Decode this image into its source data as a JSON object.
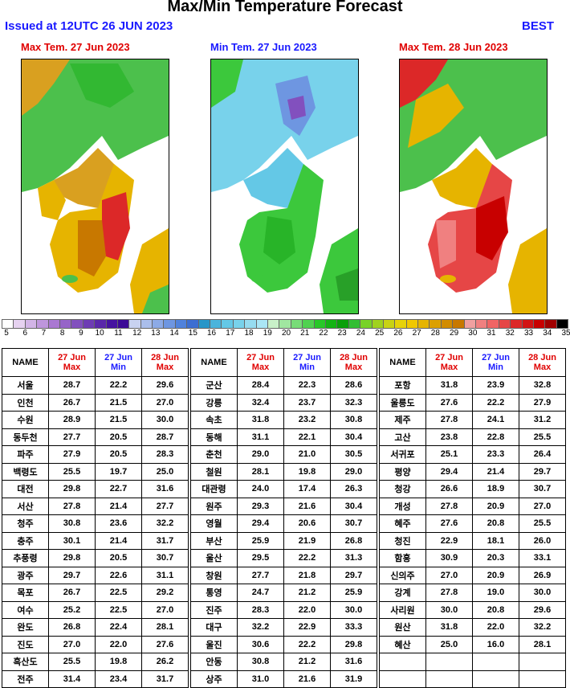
{
  "header": {
    "title": "Max/Min Temperature Forecast",
    "issued": "Issued at 12UTC 26 JUN 2023",
    "model": "BEST"
  },
  "maps": [
    {
      "title": "Max Tem. 27 Jun 2023",
      "title_color": "#e00000",
      "palette": "max1"
    },
    {
      "title": "Min Tem. 27 Jun 2023",
      "title_color": "#1a1aff",
      "palette": "min"
    },
    {
      "title": "Max Tem. 28 Jun 2023",
      "title_color": "#e00000",
      "palette": "max2"
    }
  ],
  "colorbar": {
    "labels": [
      "5",
      "6",
      "7",
      "8",
      "9",
      "10",
      "11",
      "12",
      "13",
      "14",
      "15",
      "16",
      "17",
      "18",
      "19",
      "20",
      "21",
      "22",
      "23",
      "24",
      "25",
      "26",
      "27",
      "28",
      "29",
      "30",
      "31",
      "32",
      "33",
      "34",
      "35"
    ],
    "colors": [
      "#ffffff",
      "#e6d2f0",
      "#d2b4e6",
      "#be96dc",
      "#aa78d2",
      "#9664c8",
      "#8250be",
      "#6e3cb4",
      "#5a28aa",
      "#4614a0",
      "#3c0a96",
      "#c8d2f0",
      "#aabeeb",
      "#8caae6",
      "#6e96e1",
      "#5082dc",
      "#3c6ed2",
      "#2896c8",
      "#4bb4dc",
      "#64c8e6",
      "#78d2eb",
      "#96dcf0",
      "#aae6f5",
      "#c8f0c8",
      "#a0e6a0",
      "#78dc78",
      "#50d250",
      "#28c828",
      "#14b414",
      "#0aa00a",
      "#32be32",
      "#78d228",
      "#a0d21e",
      "#c8d214",
      "#e6d20a",
      "#f0c800",
      "#e6b400",
      "#dca000",
      "#d28c00",
      "#c87800",
      "#f0a0a0",
      "#f08080",
      "#f06464",
      "#e64646",
      "#dc2828",
      "#d21414",
      "#c80000",
      "#a00000",
      "#000000"
    ]
  },
  "table": {
    "headers": {
      "name": "NAME",
      "d1": "27 Jun",
      "d1s": "Max",
      "d2": "27 Jun",
      "d2s": "Min",
      "d3": "28 Jun",
      "d3s": "Max"
    },
    "col1": [
      [
        "서울",
        "28.7",
        "22.2",
        "29.6"
      ],
      [
        "인천",
        "26.7",
        "21.5",
        "27.0"
      ],
      [
        "수원",
        "28.9",
        "21.5",
        "30.0"
      ],
      [
        "동두천",
        "27.7",
        "20.5",
        "28.7"
      ],
      [
        "파주",
        "27.9",
        "20.5",
        "28.3"
      ],
      [
        "백령도",
        "25.5",
        "19.7",
        "25.0"
      ],
      [
        "대전",
        "29.8",
        "22.7",
        "31.6"
      ],
      [
        "서산",
        "27.8",
        "21.4",
        "27.7"
      ],
      [
        "청주",
        "30.8",
        "23.6",
        "32.2"
      ],
      [
        "충주",
        "30.1",
        "21.4",
        "31.7"
      ],
      [
        "추풍령",
        "29.8",
        "20.5",
        "30.7"
      ],
      [
        "광주",
        "29.7",
        "22.6",
        "31.1"
      ],
      [
        "목포",
        "26.7",
        "22.5",
        "29.2"
      ],
      [
        "여수",
        "25.2",
        "22.5",
        "27.0"
      ],
      [
        "완도",
        "26.8",
        "22.4",
        "28.1"
      ],
      [
        "진도",
        "27.0",
        "22.0",
        "27.6"
      ],
      [
        "흑산도",
        "25.5",
        "19.8",
        "26.2"
      ],
      [
        "전주",
        "31.4",
        "23.4",
        "31.7"
      ]
    ],
    "col2": [
      [
        "군산",
        "28.4",
        "22.3",
        "28.6"
      ],
      [
        "강릉",
        "32.4",
        "23.7",
        "32.3"
      ],
      [
        "속초",
        "31.8",
        "23.2",
        "30.8"
      ],
      [
        "동해",
        "31.1",
        "22.1",
        "30.4"
      ],
      [
        "춘천",
        "29.0",
        "21.0",
        "30.5"
      ],
      [
        "철원",
        "28.1",
        "19.8",
        "29.0"
      ],
      [
        "대관령",
        "24.0",
        "17.4",
        "26.3"
      ],
      [
        "원주",
        "29.3",
        "21.6",
        "30.4"
      ],
      [
        "영월",
        "29.4",
        "20.6",
        "30.7"
      ],
      [
        "부산",
        "25.9",
        "21.9",
        "26.8"
      ],
      [
        "울산",
        "29.5",
        "22.2",
        "31.3"
      ],
      [
        "창원",
        "27.7",
        "21.8",
        "29.7"
      ],
      [
        "통영",
        "24.7",
        "21.2",
        "25.9"
      ],
      [
        "진주",
        "28.3",
        "22.0",
        "30.0"
      ],
      [
        "대구",
        "32.2",
        "22.9",
        "33.3"
      ],
      [
        "울진",
        "30.6",
        "22.2",
        "29.8"
      ],
      [
        "안동",
        "30.8",
        "21.2",
        "31.6"
      ],
      [
        "상주",
        "31.0",
        "21.6",
        "31.9"
      ]
    ],
    "col3": [
      [
        "포항",
        "31.8",
        "23.9",
        "32.8"
      ],
      [
        "울릉도",
        "27.6",
        "22.2",
        "27.9"
      ],
      [
        "제주",
        "27.8",
        "24.1",
        "31.2"
      ],
      [
        "고산",
        "23.8",
        "22.8",
        "25.5"
      ],
      [
        "서귀포",
        "25.1",
        "23.3",
        "26.4"
      ],
      [
        "평양",
        "29.4",
        "21.4",
        "29.7"
      ],
      [
        "청강",
        "26.6",
        "18.9",
        "30.7"
      ],
      [
        "개성",
        "27.8",
        "20.9",
        "27.0"
      ],
      [
        "혜주",
        "27.6",
        "20.8",
        "25.5"
      ],
      [
        "청진",
        "22.9",
        "18.1",
        "26.0"
      ],
      [
        "함흥",
        "30.9",
        "20.3",
        "33.1"
      ],
      [
        "신의주",
        "27.0",
        "20.9",
        "26.9"
      ],
      [
        "강계",
        "27.8",
        "19.0",
        "30.0"
      ],
      [
        "사리원",
        "30.0",
        "20.8",
        "29.6"
      ],
      [
        "원산",
        "31.8",
        "22.0",
        "32.2"
      ],
      [
        "혜산",
        "25.0",
        "16.0",
        "28.1"
      ],
      [
        "",
        "",
        " ",
        ""
      ],
      [
        "",
        "",
        "",
        ""
      ]
    ]
  }
}
